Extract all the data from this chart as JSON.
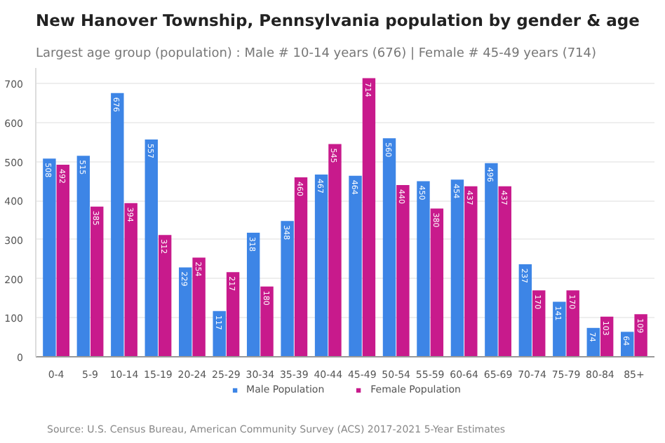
{
  "chart_data": {
    "type": "bar",
    "title": "New Hanover Township, Pennsylvania population by gender & age",
    "subtitle": "Largest age group (population) : Male # 10-14 years (676) | Female # 45-49 years (714)",
    "categories": [
      "0-4",
      "5-9",
      "10-14",
      "15-19",
      "20-24",
      "25-29",
      "30-34",
      "35-39",
      "40-44",
      "45-49",
      "50-54",
      "55-59",
      "60-64",
      "65-69",
      "70-74",
      "75-79",
      "80-84",
      "85+"
    ],
    "series": [
      {
        "name": "Male Population",
        "color": "#3d85e6",
        "values": [
          508,
          515,
          676,
          557,
          229,
          117,
          318,
          348,
          467,
          464,
          560,
          450,
          454,
          496,
          237,
          141,
          74,
          64
        ]
      },
      {
        "name": "Female Population",
        "color": "#c81a8c",
        "values": [
          492,
          385,
          394,
          312,
          254,
          217,
          180,
          460,
          545,
          714,
          440,
          380,
          437,
          437,
          170,
          170,
          103,
          109
        ]
      }
    ],
    "ylim": [
      0,
      740
    ],
    "yticks": [
      0,
      100,
      200,
      300,
      400,
      500,
      600,
      700
    ],
    "grid": "y",
    "legend": "bottom",
    "data_labels": true,
    "annotations": [
      "Source: U.S. Census Bureau, American Community Survey (ACS) 2017-2021 5-Year Estimates"
    ]
  }
}
